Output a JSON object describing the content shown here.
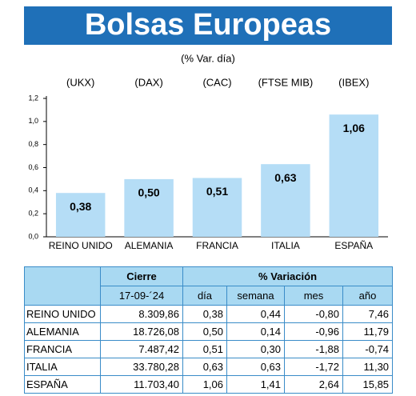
{
  "chart_data": {
    "type": "bar",
    "title": "Bolsas Europeas",
    "subtitle": "(% Var. día)",
    "tickers": [
      "(UKX)",
      "(DAX)",
      "(CAC)",
      "(FTSE MIB)",
      "(IBEX)"
    ],
    "categories": [
      "REINO UNIDO",
      "ALEMANIA",
      "FRANCIA",
      "ITALIA",
      "ESPAÑA"
    ],
    "values": [
      0.38,
      0.5,
      0.51,
      0.63,
      1.06
    ],
    "value_labels": [
      "0,38",
      "0,50",
      "0,51",
      "0,63",
      "1,06"
    ],
    "color": "#b5ddf6",
    "ylim": [
      0,
      1.2
    ],
    "yticks": [
      {
        "value": 0,
        "label": "0,0"
      },
      {
        "value": 0.2,
        "label": "0,2"
      },
      {
        "value": 0.4,
        "label": "0,4"
      },
      {
        "value": 0.6,
        "label": "0,6"
      },
      {
        "value": 0.8,
        "label": "0,8"
      },
      {
        "value": 1.0,
        "label": "1,0"
      },
      {
        "value": 1.2,
        "label": "1,2"
      }
    ]
  },
  "table": {
    "header": [
      "Cierre",
      "% Variación"
    ],
    "subheader": [
      "17-09-´24",
      "día",
      "semana",
      "mes",
      "año"
    ],
    "rows": [
      [
        "REINO UNIDO",
        "8.309,86",
        "0,38",
        "0,44",
        "-0,80",
        "7,46"
      ],
      [
        "ALEMANIA",
        "18.726,08",
        "0,50",
        "0,14",
        "-0,96",
        "11,79"
      ],
      [
        "FRANCIA",
        "7.487,42",
        "0,51",
        "0,30",
        "-1,88",
        "-0,74"
      ],
      [
        "ITALIA",
        "33.780,28",
        "0,63",
        "0,63",
        "-1,72",
        "11,30"
      ],
      [
        "ESPAÑA",
        "11.703,40",
        "1,06",
        "1,41",
        "2,64",
        "15,85"
      ]
    ]
  }
}
